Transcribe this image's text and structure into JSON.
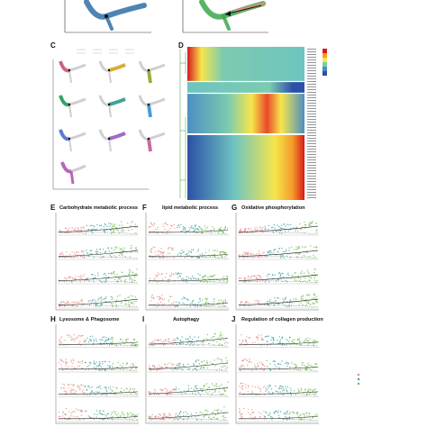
{
  "panels": {
    "c_label": "C",
    "d_label": "D",
    "e_label": "E",
    "f_label": "F",
    "g_label": "G",
    "h_label": "H",
    "i_label": "I",
    "j_label": "J",
    "e_title": "Carbohydrate metabolic process",
    "f_title": "lipid metabolic process",
    "g_title": "Oxidative phosphorylation",
    "h_title": "Lysosome & Phagosome",
    "i_title": "Autophagy",
    "j_title": "Regulation of collagen production"
  },
  "colors": {
    "trajectory_blue": "#2f6fa5",
    "trajectory_green": "#3aa84a",
    "heat_red": "#d7191c",
    "heat_yellow": "#f7e64a",
    "heat_blue": "#2b50a8",
    "point_teal": "#3a9e9a",
    "point_salmon": "#e58a7c",
    "point_green": "#66bb44"
  }
}
